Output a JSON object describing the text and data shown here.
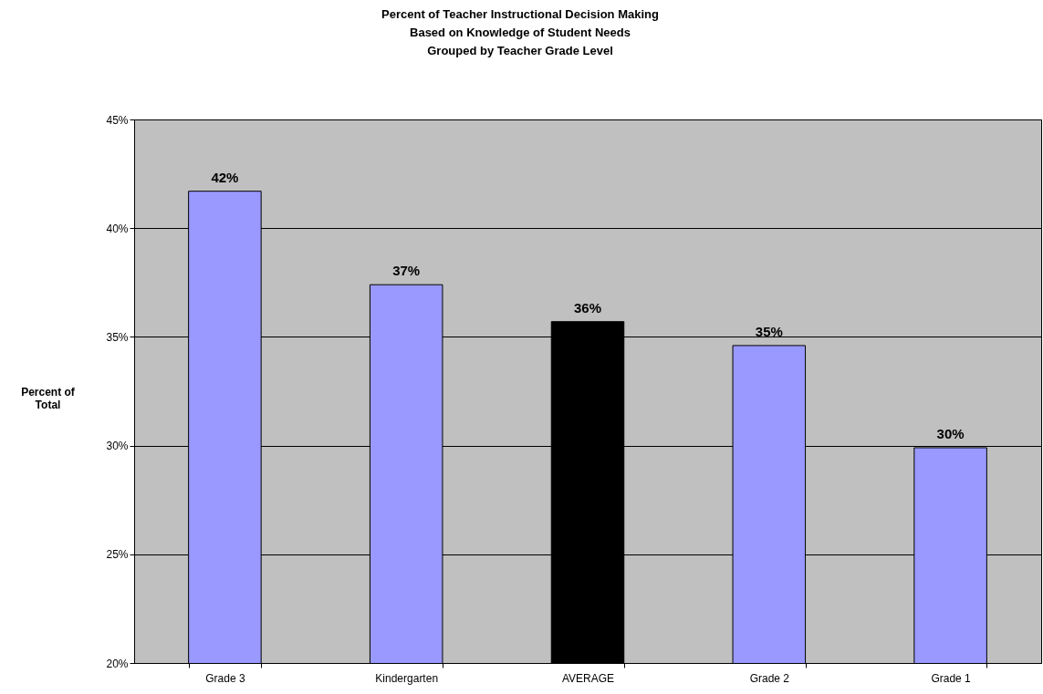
{
  "chart_data": {
    "type": "bar",
    "title": [
      "Percent of Teacher Instructional Decision Making",
      "Based on Knowledge of Student Needs",
      "Grouped by Teacher Grade Level"
    ],
    "ylabel": "Percent of Total",
    "categories": [
      "Grade 3",
      "Kindergarten",
      "AVERAGE",
      "Grade 2",
      "Grade 1"
    ],
    "values": [
      41.7,
      37.4,
      35.7,
      34.6,
      29.9
    ],
    "colors": [
      "#9999ff",
      "#9999ff",
      "#000000",
      "#9999ff",
      "#9999ff"
    ],
    "value_labels": [
      "42%",
      "37%",
      "36%",
      "35%",
      "30%"
    ],
    "ylim": [
      20,
      45
    ],
    "yticks": [
      {
        "value": 20,
        "label": "20%"
      },
      {
        "value": 25,
        "label": "25%"
      },
      {
        "value": 30,
        "label": "30%"
      },
      {
        "value": 35,
        "label": "35%"
      },
      {
        "value": 40,
        "label": "40%"
      },
      {
        "value": 45,
        "label": "45%"
      }
    ],
    "grid": "y"
  }
}
